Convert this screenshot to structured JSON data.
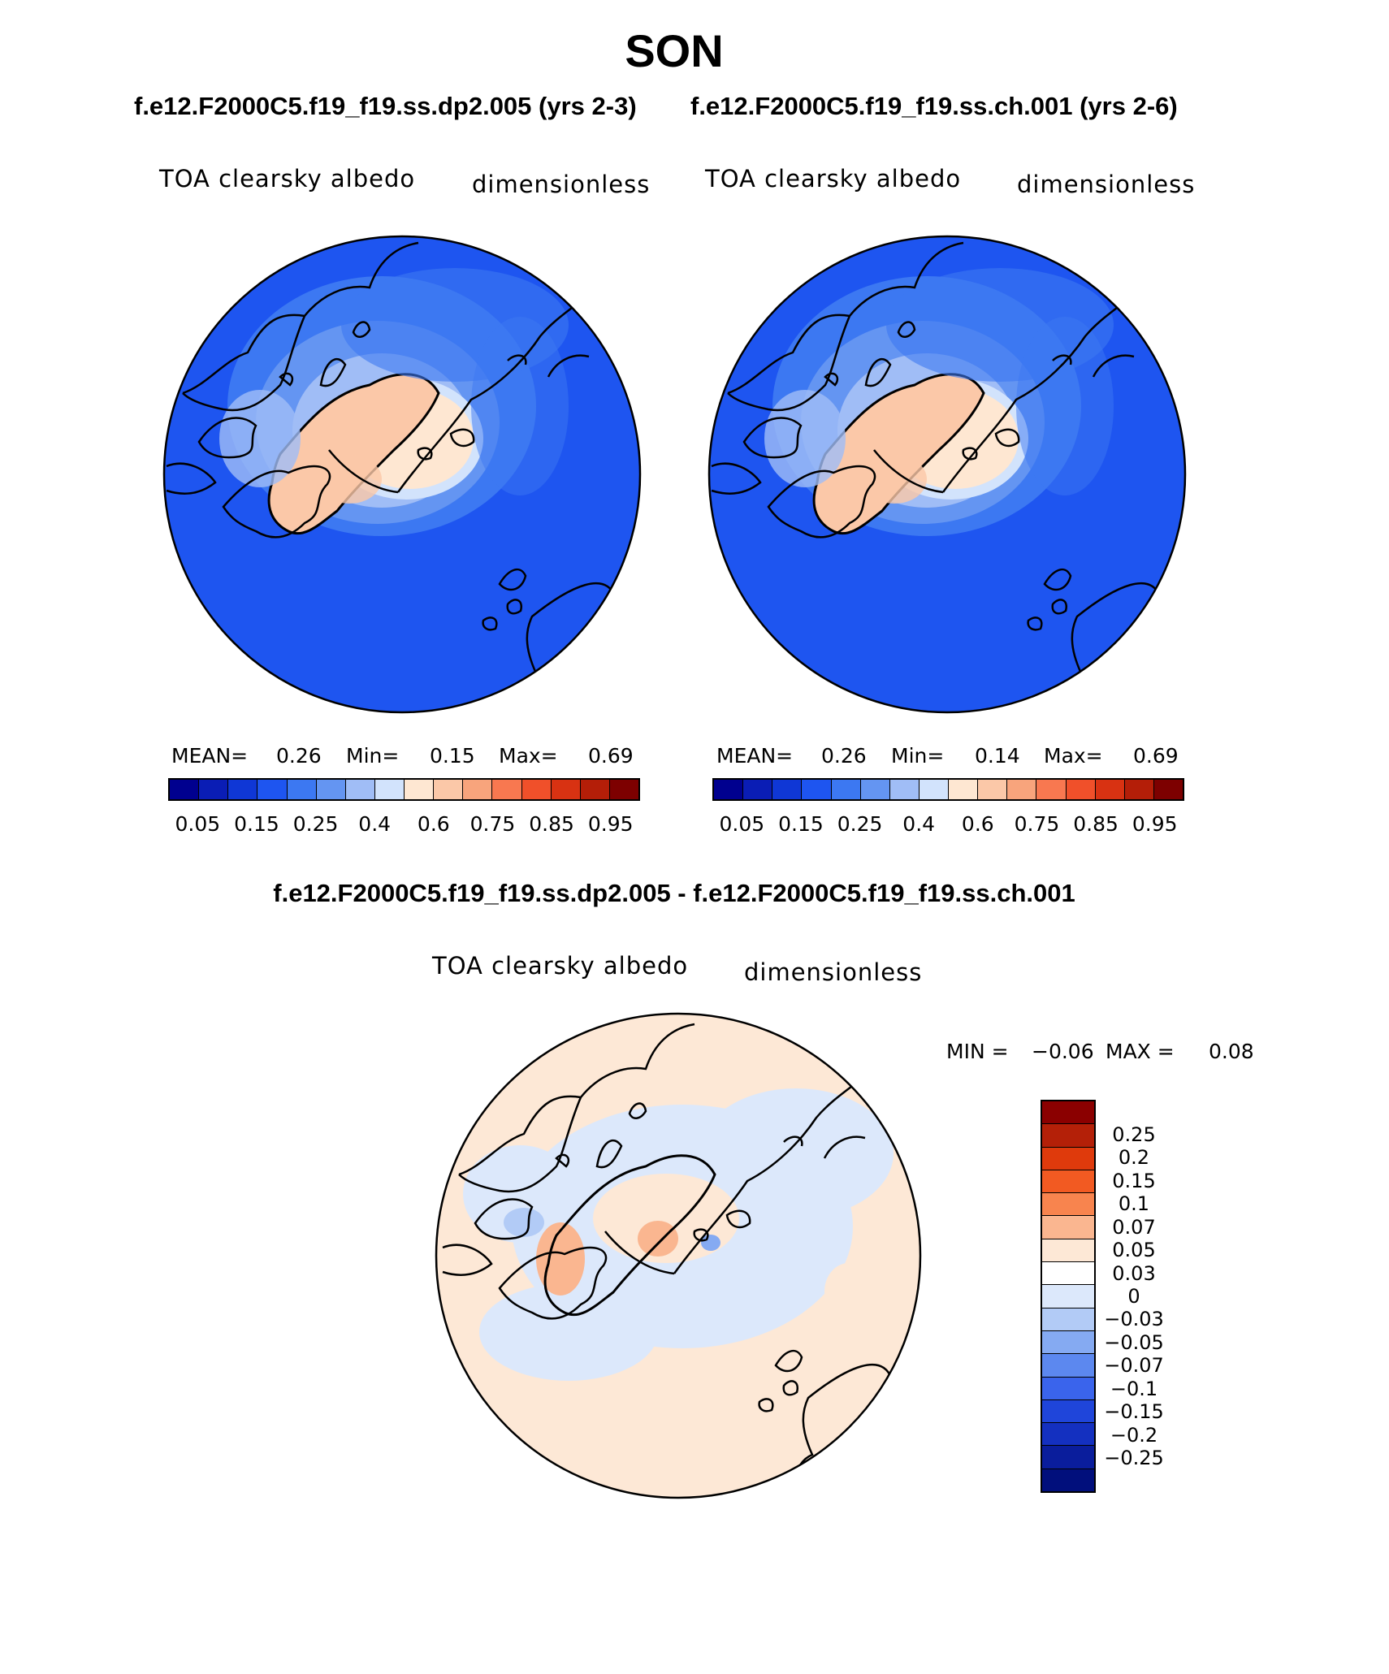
{
  "figure": {
    "title": "SON",
    "subtitle_left": "f.e12.F2000C5.f19_f19.ss.dp2.005 (yrs 2-3)",
    "subtitle_right": "f.e12.F2000C5.f19_f19.ss.ch.001 (yrs 2-6)",
    "diff_title": "f.e12.F2000C5.f19_f19.ss.dp2.005 - f.e12.F2000C5.f19_f19.ss.ch.001"
  },
  "panels": [
    {
      "variable": "TOA clearsky albedo",
      "units": "dimensionless",
      "mean_label": "MEAN=",
      "mean": "0.26",
      "min_label": "Min=",
      "min": "0.15",
      "max_label": "Max=",
      "max": "0.69"
    },
    {
      "variable": "TOA clearsky albedo",
      "units": "dimensionless",
      "mean_label": "MEAN=",
      "mean": "0.26",
      "min_label": "Min=",
      "min": "0.14",
      "max_label": "Max=",
      "max": "0.69"
    }
  ],
  "diff_panel": {
    "variable": "TOA clearsky albedo",
    "units": "dimensionless",
    "min_label": "MIN =",
    "min": "−0.06",
    "max_label": "MAX =",
    "max": "0.08"
  },
  "colorbar_main": {
    "colors": [
      "#00008f",
      "#0a1db5",
      "#0f37d6",
      "#1e55f0",
      "#3c78f2",
      "#6495f2",
      "#a0bdf6",
      "#d2e3fc",
      "#fee7d2",
      "#fbc8a8",
      "#f8a47c",
      "#f87850",
      "#f0502a",
      "#d83212",
      "#b41e08",
      "#7d0000"
    ],
    "ticks": [
      "0.05",
      "0.15",
      "0.25",
      "0.4",
      "0.6",
      "0.75",
      "0.85",
      "0.95"
    ]
  },
  "colorbar_diff": {
    "colors": [
      "#8b0000",
      "#b42008",
      "#df3a0c",
      "#f25a22",
      "#f8844e",
      "#fab690",
      "#fde8d6",
      "#ffffff",
      "#dce8fb",
      "#b2cbf6",
      "#85aaf2",
      "#5c88ef",
      "#3a64ec",
      "#1f45da",
      "#1430c0",
      "#0a1d9c",
      "#010f7c"
    ],
    "ticks": [
      "0.25",
      "0.2",
      "0.15",
      "0.1",
      "0.07",
      "0.05",
      "0.03",
      "0",
      "−0.03",
      "−0.05",
      "−0.07",
      "−0.1",
      "−0.15",
      "−0.2",
      "−0.25"
    ]
  },
  "chart_data": {
    "type": "map",
    "projection": "north polar stereographic",
    "season": "SON",
    "panels": [
      {
        "case": "f.e12.F2000C5.f19_f19.ss.dp2.005",
        "years": "2-3",
        "mean": 0.26,
        "min": 0.15,
        "max": 0.69
      },
      {
        "case": "f.e12.F2000C5.f19_f19.ss.ch.001",
        "years": "2-6",
        "mean": 0.26,
        "min": 0.14,
        "max": 0.69
      },
      {
        "case": "difference",
        "min": -0.06,
        "max": 0.08
      }
    ]
  }
}
